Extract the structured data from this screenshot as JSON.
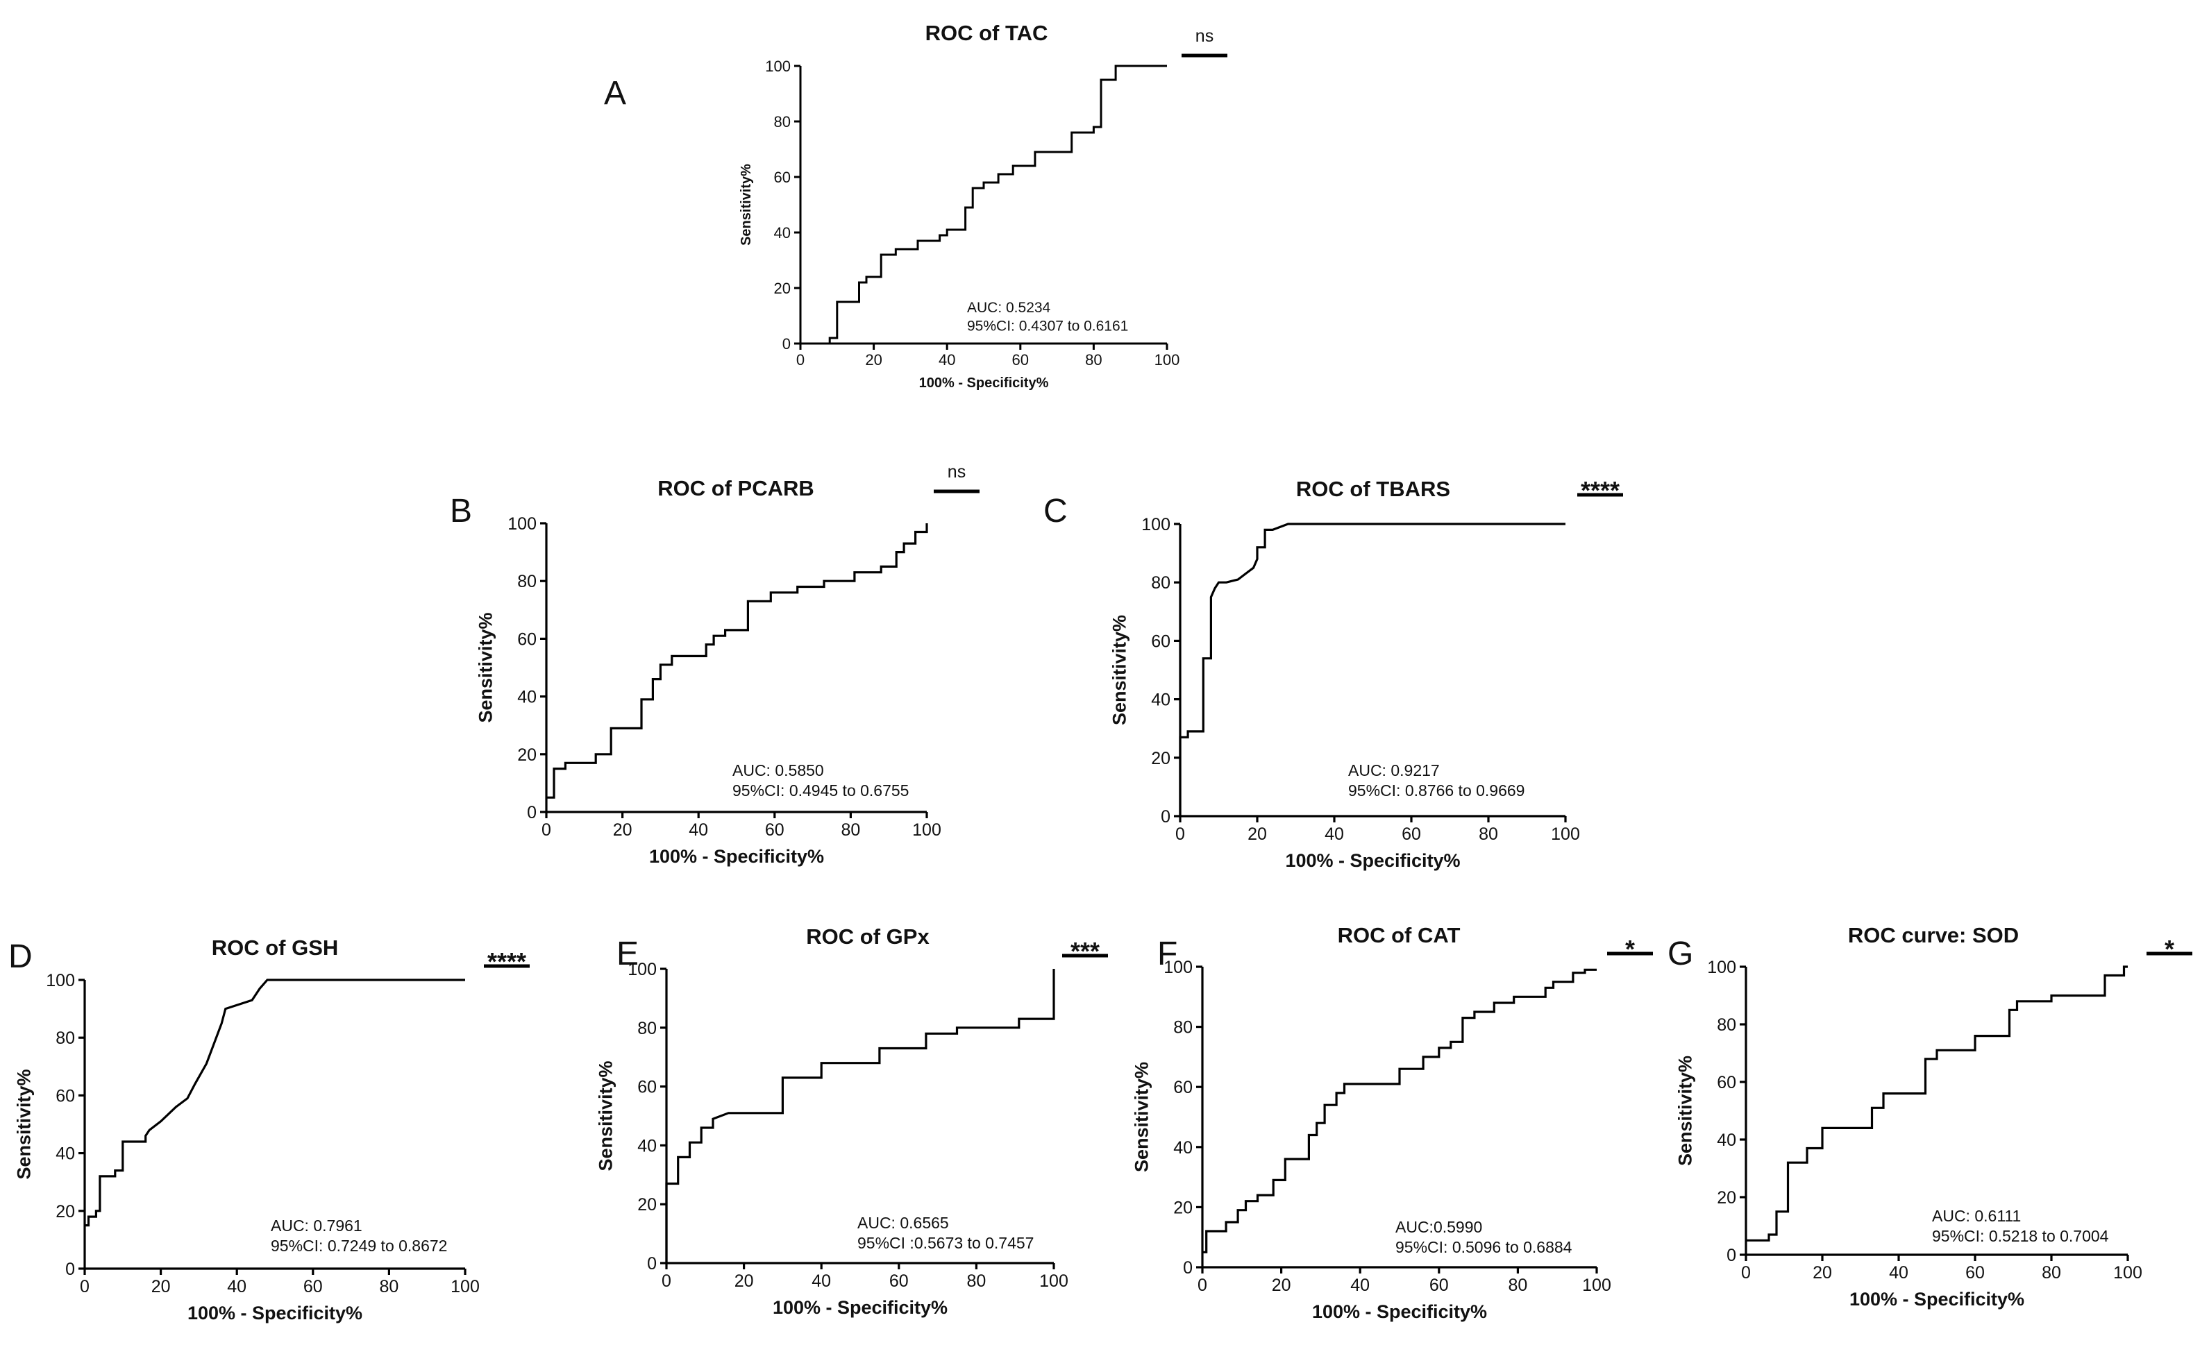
{
  "figure": {
    "line_color": "#000000",
    "background": "#ffffff",
    "chart_data": [
      {
        "id": "A",
        "type": "line",
        "panel_letter": "A",
        "title": "ROC of TAC",
        "xlabel": "100% - Specificity%",
        "ylabel": "Sensitivity%",
        "xlim": [
          0,
          100
        ],
        "ylim": [
          0,
          100
        ],
        "xticks": [
          0,
          20,
          40,
          60,
          80,
          100
        ],
        "yticks": [
          0,
          20,
          40,
          60,
          80,
          100
        ],
        "grid": false,
        "significance": "ns",
        "auc_text": "AUC: 0.5234",
        "ci_text": "95%CI: 0.4307 to 0.6161",
        "series": [
          {
            "name": "ROC",
            "x": [
              8,
              8,
              10,
              10,
              16,
              16,
              18,
              18,
              22,
              22,
              26,
              26,
              32,
              32,
              38,
              38,
              40,
              40,
              45,
              45,
              47,
              47,
              50,
              50,
              54,
              54,
              58,
              58,
              64,
              64,
              74,
              74,
              80,
              80,
              82,
              82,
              86,
              86,
              100
            ],
            "y": [
              0,
              2,
              2,
              15,
              15,
              22,
              22,
              24,
              24,
              32,
              32,
              34,
              34,
              37,
              37,
              39,
              39,
              41,
              41,
              49,
              49,
              56,
              56,
              58,
              58,
              61,
              61,
              64,
              64,
              69,
              69,
              76,
              76,
              78,
              78,
              95,
              95,
              100,
              100
            ]
          }
        ]
      },
      {
        "id": "B",
        "type": "line",
        "panel_letter": "B",
        "title": "ROC of PCARB",
        "xlabel": "100% - Specificity%",
        "ylabel": "Sensitivity%",
        "xlim": [
          0,
          100
        ],
        "ylim": [
          0,
          100
        ],
        "xticks": [
          0,
          20,
          40,
          60,
          80,
          100
        ],
        "yticks": [
          0,
          20,
          40,
          60,
          80,
          100
        ],
        "grid": false,
        "significance": "ns",
        "auc_text": "AUC: 0.5850",
        "ci_text": "95%CI: 0.4945 to 0.6755",
        "series": [
          {
            "name": "ROC",
            "x": [
              0,
              2,
              2,
              5,
              5,
              13,
              13,
              17,
              17,
              25,
              25,
              28,
              28,
              30,
              30,
              33,
              33,
              36,
              36,
              42,
              42,
              44,
              44,
              47,
              47,
              53,
              53,
              59,
              59,
              66,
              66,
              73,
              73,
              81,
              81,
              84,
              84,
              88,
              88,
              92,
              92,
              94,
              94,
              97,
              97,
              100,
              100
            ],
            "y": [
              5,
              5,
              15,
              15,
              17,
              17,
              20,
              20,
              29,
              29,
              39,
              39,
              46,
              46,
              51,
              51,
              54,
              54,
              54,
              54,
              58,
              58,
              61,
              61,
              63,
              63,
              73,
              73,
              76,
              76,
              78,
              78,
              80,
              80,
              83,
              83,
              83,
              83,
              85,
              85,
              90,
              90,
              93,
              93,
              97,
              97,
              100
            ]
          }
        ]
      },
      {
        "id": "C",
        "type": "line",
        "panel_letter": "C",
        "title": "ROC of TBARS",
        "xlabel": "100% - Specificity%",
        "ylabel": "Sensitivity%",
        "xlim": [
          0,
          100
        ],
        "ylim": [
          0,
          100
        ],
        "xticks": [
          0,
          20,
          40,
          60,
          80,
          100
        ],
        "yticks": [
          0,
          20,
          40,
          60,
          80,
          100
        ],
        "grid": false,
        "significance": "****",
        "auc_text": "AUC: 0.9217",
        "ci_text": "95%CI: 0.8766 to 0.9669",
        "series": [
          {
            "name": "ROC",
            "x": [
              0,
              0,
              2,
              2,
              6,
              6,
              8,
              8,
              9,
              10,
              12,
              15,
              17,
              19,
              20,
              20,
              22,
              22,
              24,
              28,
              40,
              60,
              80,
              100
            ],
            "y": [
              0,
              27,
              27,
              29,
              29,
              54,
              54,
              75,
              78,
              80,
              80,
              81,
              83,
              85,
              88,
              92,
              92,
              98,
              98,
              100,
              100,
              100,
              100,
              100
            ]
          }
        ]
      },
      {
        "id": "D",
        "type": "line",
        "panel_letter": "D",
        "title": "ROC of GSH",
        "xlabel": "100% - Specificity%",
        "ylabel": "Sensitivity%",
        "xlim": [
          0,
          100
        ],
        "ylim": [
          0,
          100
        ],
        "xticks": [
          0,
          20,
          40,
          60,
          80,
          100
        ],
        "yticks": [
          0,
          20,
          40,
          60,
          80,
          100
        ],
        "grid": false,
        "significance": "****",
        "auc_text": "AUC: 0.7961",
        "ci_text": "95%CI: 0.7249 to 0.8672",
        "series": [
          {
            "name": "ROC",
            "x": [
              0,
              1,
              1,
              3,
              3,
              4,
              4,
              8,
              8,
              10,
              10,
              16,
              16,
              17,
              20,
              20,
              24,
              24,
              27,
              27,
              29,
              29,
              32,
              32,
              36,
              36,
              37,
              37,
              44,
              44,
              46,
              46,
              48,
              48,
              100
            ],
            "y": [
              15,
              15,
              18,
              18,
              20,
              20,
              32,
              32,
              34,
              34,
              44,
              44,
              46,
              48,
              51,
              51,
              56,
              56,
              59,
              59,
              64,
              64,
              71,
              71,
              85,
              85,
              90,
              90,
              93,
              93,
              97,
              97,
              100,
              100,
              100
            ]
          }
        ]
      },
      {
        "id": "E",
        "type": "line",
        "panel_letter": "E",
        "title": "ROC of GPx",
        "xlabel": "100% - Specificity%",
        "ylabel": "Sensitivity%",
        "xlim": [
          0,
          100
        ],
        "ylim": [
          0,
          100
        ],
        "xticks": [
          0,
          20,
          40,
          60,
          80,
          100
        ],
        "yticks": [
          0,
          20,
          40,
          60,
          80,
          100
        ],
        "grid": false,
        "significance": "***",
        "auc_text": "AUC: 0.6565",
        "ci_text": "95%CI :0.5673 to 0.7457",
        "series": [
          {
            "name": "ROC",
            "x": [
              0,
              0,
              3,
              3,
              6,
              6,
              9,
              9,
              12,
              12,
              16,
              30,
              30,
              40,
              40,
              55,
              55,
              64,
              64,
              67,
              67,
              75,
              75,
              80,
              80,
              91,
              91,
              99,
              99,
              100,
              100
            ],
            "y": [
              0,
              27,
              27,
              36,
              36,
              41,
              41,
              46,
              46,
              49,
              51,
              51,
              63,
              63,
              68,
              68,
              73,
              73,
              73,
              73,
              78,
              78,
              80,
              80,
              80,
              80,
              83,
              83,
              83,
              83,
              100
            ]
          }
        ]
      },
      {
        "id": "F",
        "type": "line",
        "panel_letter": "F",
        "title": "ROC of CAT",
        "xlabel": "100% - Specificity%",
        "ylabel": "Sensitivity%",
        "xlim": [
          0,
          100
        ],
        "ylim": [
          0,
          100
        ],
        "xticks": [
          0,
          20,
          40,
          60,
          80,
          100
        ],
        "yticks": [
          0,
          20,
          40,
          60,
          80,
          100
        ],
        "grid": false,
        "significance": "*",
        "auc_text": "AUC:0.5990",
        "ci_text": "95%CI: 0.5096 to 0.6884",
        "series": [
          {
            "name": "ROC",
            "x": [
              0,
              1,
              1,
              6,
              6,
              9,
              9,
              11,
              11,
              14,
              14,
              18,
              18,
              21,
              21,
              27,
              27,
              29,
              29,
              31,
              31,
              34,
              34,
              36,
              36,
              39,
              39,
              50,
              50,
              56,
              56,
              60,
              60,
              63,
              63,
              66,
              66,
              69,
              69,
              74,
              74,
              79,
              79,
              82,
              82,
              87,
              87,
              89,
              89,
              94,
              94,
              97,
              97,
              100
            ],
            "y": [
              5,
              5,
              12,
              12,
              15,
              15,
              19,
              19,
              22,
              22,
              24,
              24,
              29,
              29,
              36,
              36,
              44,
              44,
              48,
              48,
              54,
              54,
              58,
              58,
              61,
              61,
              61,
              61,
              66,
              66,
              70,
              70,
              73,
              73,
              75,
              75,
              83,
              83,
              85,
              85,
              88,
              88,
              90,
              90,
              90,
              90,
              93,
              93,
              95,
              95,
              98,
              98,
              99,
              99
            ]
          }
        ]
      },
      {
        "id": "G",
        "type": "line",
        "panel_letter": "G",
        "title": "ROC curve: SOD",
        "xlabel": "100% - Specificity%",
        "ylabel": "Sensitivity%",
        "xlim": [
          0,
          100
        ],
        "ylim": [
          0,
          100
        ],
        "xticks": [
          0,
          20,
          40,
          60,
          80,
          100
        ],
        "yticks": [
          0,
          20,
          40,
          60,
          80,
          100
        ],
        "grid": false,
        "significance": "*",
        "auc_text": "AUC: 0.6111",
        "ci_text": "95%CI: 0.5218 to 0.7004",
        "series": [
          {
            "name": "ROC",
            "x": [
              0,
              6,
              6,
              8,
              8,
              11,
              11,
              16,
              16,
              20,
              20,
              27,
              27,
              33,
              33,
              36,
              36,
              42,
              42,
              47,
              47,
              50,
              50,
              58,
              58,
              60,
              60,
              69,
              69,
              71,
              71,
              74,
              74,
              80,
              80,
              94,
              94,
              99,
              99,
              100,
              100
            ],
            "y": [
              5,
              5,
              7,
              7,
              15,
              15,
              32,
              32,
              37,
              37,
              44,
              44,
              44,
              44,
              51,
              51,
              56,
              56,
              56,
              56,
              68,
              68,
              71,
              71,
              71,
              71,
              76,
              76,
              85,
              85,
              88,
              88,
              88,
              88,
              90,
              90,
              97,
              97,
              100,
              100,
              100
            ]
          }
        ]
      }
    ]
  }
}
